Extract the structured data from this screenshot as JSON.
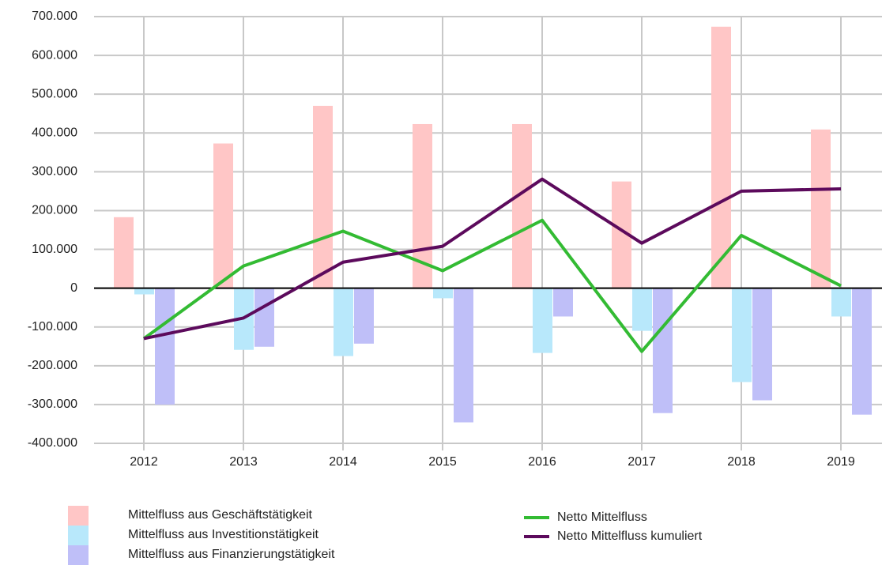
{
  "chart_data": {
    "type": "bar",
    "categories": [
      "2012",
      "2013",
      "2014",
      "2015",
      "2016",
      "2017",
      "2018",
      "2019"
    ],
    "series": [
      {
        "name": "Mittelfluss aus Geschäftstätigkeit",
        "color": "#ffc6c6",
        "values": [
          183000,
          373000,
          470000,
          423000,
          423000,
          275000,
          674000,
          409000
        ]
      },
      {
        "name": "Mittelfluss aus Investitionstätigkeit",
        "color": "#b8e8fb",
        "values": [
          -16000,
          -159000,
          -175000,
          -26000,
          -167000,
          -110000,
          -242000,
          -73000
        ]
      },
      {
        "name": "Mittelfluss aus Finanzierungstätigkeit",
        "color": "#bfbff8",
        "values": [
          -300000,
          -151000,
          -143000,
          -346000,
          -73000,
          -322000,
          -289000,
          -326000
        ]
      },
      {
        "name": "Netto Mittelfluss",
        "color": "#33bb33",
        "type": "line",
        "values": [
          -130000,
          57000,
          147000,
          45000,
          175000,
          -163000,
          136000,
          6000
        ]
      },
      {
        "name": "Netto Mittelfluss kumuliert",
        "color": "#5c0a5c",
        "type": "line",
        "values": [
          -130000,
          -77000,
          67000,
          108000,
          281000,
          116000,
          250000,
          256000
        ]
      }
    ],
    "ylim": [
      -400000,
      700000
    ],
    "yticks": [
      {
        "value": -400000,
        "label": "-400.000"
      },
      {
        "value": -300000,
        "label": "-300.000"
      },
      {
        "value": -200000,
        "label": "-200.000"
      },
      {
        "value": -100000,
        "label": "-100.000"
      },
      0,
      {
        "value": 100000,
        "label": "100.000"
      },
      {
        "value": 200000,
        "label": "200.000"
      },
      {
        "value": 300000,
        "label": "300.000"
      },
      {
        "value": 400000,
        "label": "400.000"
      },
      {
        "value": 500000,
        "label": "500.000"
      },
      {
        "value": 600000,
        "label": "600.000"
      },
      {
        "value": 700000,
        "label": "700.000"
      }
    ],
    "grid": true
  }
}
